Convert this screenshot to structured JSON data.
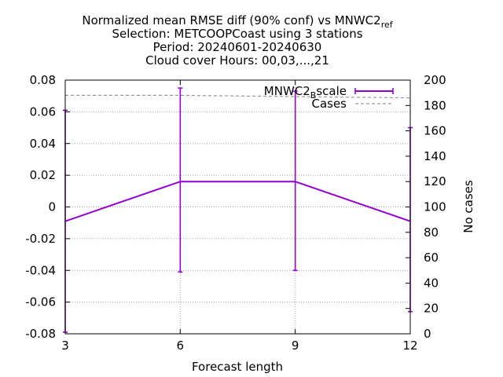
{
  "title_lines": [
    "Normalized mean RMSE diff (90% conf) vs MNWC2",
    "Selection: METCOOPCoast using      3 stations",
    "Period: 20240601-20240630",
    "Cloud cover   Hours: 00,03,...,21"
  ],
  "title_subscript": "ref",
  "chart_data": {
    "type": "line",
    "xlabel": "Forecast length",
    "ylabel": "",
    "y2label": "No cases",
    "x": [
      3,
      6,
      9,
      12
    ],
    "xlim": [
      3,
      12
    ],
    "ylim": [
      -0.08,
      0.08
    ],
    "y2lim": [
      0,
      200
    ],
    "x_ticks": [
      "3",
      "6",
      "9",
      "12"
    ],
    "y_ticks": [
      "0.08",
      "0.06",
      "0.04",
      "0.02",
      "0",
      "-0.02",
      "-0.04",
      "-0.06",
      "-0.08"
    ],
    "y2_ticks": [
      "200",
      "180",
      "160",
      "140",
      "120",
      "100",
      "80",
      "60",
      "40",
      "20",
      "0"
    ],
    "grid": true,
    "legend_position": "top-right",
    "series": [
      {
        "name": "MNWC2",
        "name_subscript": "B",
        "name_suffix": "scale",
        "axis": "y",
        "style": "line-errorbars",
        "color": "#9400d3",
        "values": [
          -0.009,
          0.016,
          0.016,
          -0.009
        ],
        "err_low": [
          -0.079,
          -0.041,
          -0.04,
          -0.066
        ],
        "err_high": [
          0.061,
          0.075,
          0.073,
          0.05
        ]
      },
      {
        "name": "Cases",
        "axis": "y2",
        "style": "dashed",
        "color": "#999999",
        "values": [
          188,
          188,
          187,
          186
        ]
      }
    ]
  }
}
